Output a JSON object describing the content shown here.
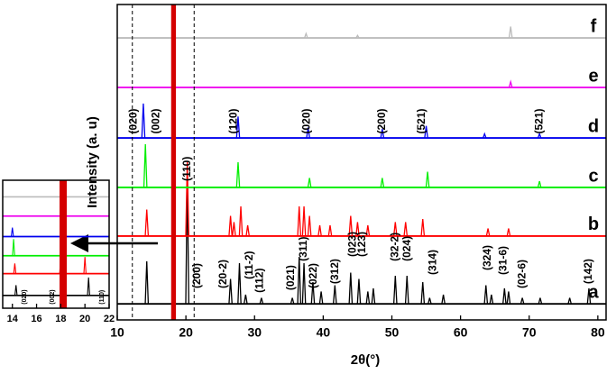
{
  "chart_data": [
    {
      "type": "line",
      "x_label": "2θ(°)",
      "y_label": "Intensity (a. u)",
      "xlim": [
        10,
        81.2
      ],
      "ylim": [
        0,
        100
      ],
      "xticks": [
        10,
        20,
        30,
        40,
        50,
        60,
        70,
        80
      ],
      "reference_lines": [
        12.2,
        21.2
      ],
      "highlight_band": {
        "x": [
          17.85,
          18.55
        ],
        "color": "#d40000"
      },
      "series": [
        {
          "name": "a",
          "color": "#000000",
          "baseline": 5.1,
          "peak_x": [
            14.3,
            18.2,
            20.2,
            26.5,
            27.8,
            28.7,
            31.0,
            35.5,
            36.5,
            37.2,
            38.5,
            39.7,
            41.7,
            44.0,
            45.2,
            46.5,
            47.3,
            50.5,
            52.2,
            54.5,
            55.5,
            57.5,
            63.7,
            64.5,
            66.4,
            67.0,
            69.0,
            71.6,
            75.9,
            78.7
          ],
          "peak_values": [
            18.6,
            100,
            45,
            13,
            18,
            8,
            7,
            7,
            20,
            18,
            12,
            9,
            11,
            15,
            13,
            9,
            10,
            14,
            14,
            12,
            7,
            8,
            11,
            8,
            10,
            9,
            7,
            7,
            7,
            10
          ]
        },
        {
          "name": "b",
          "color": "#ff0000",
          "baseline": 26.6,
          "peak_x": [
            14.3,
            18.2,
            20.2,
            26.5,
            27.0,
            28.0,
            29.0,
            36.5,
            37.2,
            38.0,
            39.5,
            41.0,
            44.0,
            45.0,
            46.5,
            50.5,
            52.0,
            54.5,
            64.0,
            67.0
          ],
          "peak_values": [
            35,
            100,
            50,
            33,
            31,
            36,
            30,
            36,
            36,
            33,
            30,
            30,
            33,
            31,
            30,
            31,
            31,
            32,
            29,
            29
          ]
        },
        {
          "name": "c",
          "color": "#00ee00",
          "baseline": 42,
          "peak_x": [
            14.1,
            27.6,
            38.0,
            48.6,
            55.2,
            71.5
          ],
          "peak_values": [
            55.7,
            50,
            45,
            45,
            47,
            44
          ]
        },
        {
          "name": "d",
          "color": "#0000ee",
          "baseline": 57.7,
          "peak_x": [
            13.8,
            27.6,
            37.8,
            48.6,
            55.0,
            63.5,
            71.5
          ],
          "peak_values": [
            68.6,
            64.5,
            61,
            60.5,
            61.5,
            59,
            59
          ]
        },
        {
          "name": "e",
          "color": "#ee00ee",
          "baseline": 73.7,
          "peak_x": [
            67.3
          ],
          "peak_values": [
            75.5
          ]
        },
        {
          "name": "f",
          "color": "#bbbbbb",
          "baseline": 89.4,
          "peak_x": [
            37.5,
            45.0,
            67.3
          ],
          "peak_values": [
            90.8,
            90.2,
            93
          ]
        }
      ],
      "annotations": [
        {
          "text": "(020)",
          "x": 12.4,
          "y": 59
        },
        {
          "text": "(002)",
          "x": 15.7,
          "y": 59
        },
        {
          "text": "(110)",
          "x": 20.2,
          "y": 44
        },
        {
          "text": "(120)",
          "x": 27.0,
          "y": 59
        },
        {
          "text": "(020)",
          "x": 37.6,
          "y": 59
        },
        {
          "text": "(200)",
          "x": 48.6,
          "y": 59
        },
        {
          "text": "(521)",
          "x": 54.4,
          "y": 59
        },
        {
          "text": "(521)",
          "x": 71.5,
          "y": 59
        },
        {
          "text": "(200)",
          "x": 21.7,
          "y": 10
        },
        {
          "text": "(20-2)",
          "x": 25.5,
          "y": 10
        },
        {
          "text": "(11-2)",
          "x": 29.3,
          "y": 12.9
        },
        {
          "text": "(112)",
          "x": 30.8,
          "y": 8.6
        },
        {
          "text": "(021)",
          "x": 35.3,
          "y": 9.4
        },
        {
          "text": "(311)",
          "x": 37.2,
          "y": 18.6
        },
        {
          "text": "(022)",
          "x": 38.6,
          "y": 10
        },
        {
          "text": "(312)",
          "x": 41.8,
          "y": 11.4
        },
        {
          "text": "(023)",
          "x": 44.3,
          "y": 20
        },
        {
          "text": "(123)",
          "x": 45.7,
          "y": 20
        },
        {
          "text": "(32-2)",
          "x": 50.5,
          "y": 18.6
        },
        {
          "text": "(024)",
          "x": 52.3,
          "y": 18.6
        },
        {
          "text": "(314)",
          "x": 56.0,
          "y": 14.3
        },
        {
          "text": "(324)",
          "x": 64.0,
          "y": 15.7
        },
        {
          "text": "(31-6)",
          "x": 66.3,
          "y": 14.3
        },
        {
          "text": "(02-6)",
          "x": 69.0,
          "y": 10
        },
        {
          "text": "(142)",
          "x": 78.7,
          "y": 11.4
        }
      ]
    },
    {
      "type": "line",
      "xlim": [
        13.2,
        22
      ],
      "ylim": [
        0,
        100
      ],
      "xticks": [
        14,
        16,
        18,
        20,
        22
      ],
      "highlight_band": {
        "x": [
          17.9,
          18.5
        ],
        "color": "#d40000"
      },
      "series": [
        {
          "color": "#bbbbbb",
          "baseline": 87,
          "peak_x": [],
          "peak_values": []
        },
        {
          "color": "#ee00ee",
          "baseline": 72,
          "peak_x": [],
          "peak_values": []
        },
        {
          "color": "#0000ee",
          "baseline": 56,
          "peak_x": [
            14.0
          ],
          "peak_values": [
            63
          ]
        },
        {
          "color": "#00ee00",
          "baseline": 41,
          "peak_x": [
            14.1
          ],
          "peak_values": [
            54
          ]
        },
        {
          "color": "#ff0000",
          "baseline": 27,
          "peak_x": [
            14.2,
            18.0,
            20.0
          ],
          "peak_values": [
            35,
            40,
            40
          ]
        },
        {
          "color": "#000000",
          "baseline": 10,
          "peak_x": [
            14.3,
            18.2,
            20.3
          ],
          "peak_values": [
            18,
            100,
            24
          ]
        }
      ],
      "annotations": [
        {
          "text": "(020)",
          "x": 15.0,
          "y": 3
        },
        {
          "text": "(002)",
          "x": 17.3,
          "y": 3
        },
        {
          "text": "(110)",
          "x": 21.4,
          "y": 3
        }
      ]
    }
  ]
}
